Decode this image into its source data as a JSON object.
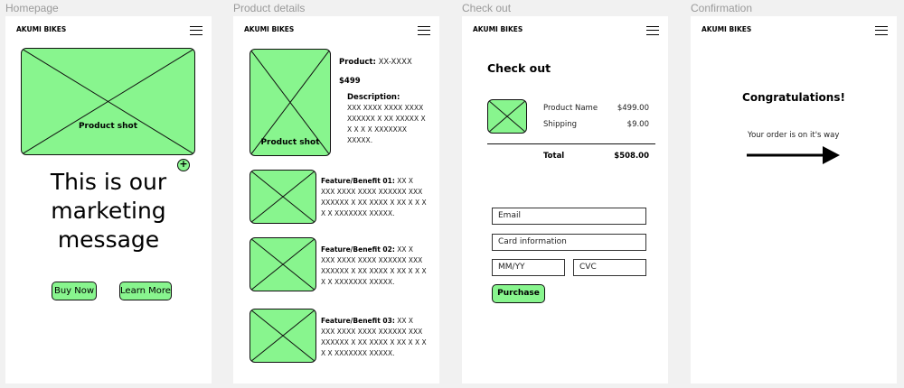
{
  "frames": [
    "Homepage",
    "Product details",
    "Check out",
    "Confirmation"
  ],
  "brand": "AKUMI BIKES",
  "colors": {
    "accent": "#88f58e",
    "background": "#f1f1f1"
  },
  "home": {
    "hero_caption": "Product shot",
    "message": "This is our marketing message",
    "buy": "Buy Now",
    "learn": "Learn More",
    "plus": "+"
  },
  "product": {
    "shot": "Product shot",
    "product_label": "Product:",
    "product_value": "XX-XXXX",
    "price": "$499",
    "desc_label": "Description:",
    "desc": "XXX XXXX XXXX XXXX XXXXXX X XX XXXXX X X X X X XXXXXXX XXXXX.",
    "features": [
      {
        "label": "Feature/Benefit 01:",
        "text": "XX X XXX XXXX XXXX XXXXXX XXX XXXXXX X XX XXXX X   XX X X X X X XXXXXXX XXXXX."
      },
      {
        "label": "Feature/Benefit 02:",
        "text": "XX X XXX XXXX XXXX XXXXXX XXX XXXXXX X XX XXXX X   XX X X X X X XXXXXXX XXXXX."
      },
      {
        "label": "Feature/Benefit 03:",
        "text": "XX X XXX XXXX XXXX XXXXXX XXX XXXXXX X XX XXXX X   XX X X X X X XXXXXXX XXXXX."
      }
    ]
  },
  "checkout": {
    "title": "Check out",
    "item": "Product Name",
    "item_price": "$499.00",
    "shipping": "Shipping",
    "shipping_price": "$9.00",
    "total": "Total",
    "total_price": "$508.00",
    "email": "Email",
    "card": "Card information",
    "date": "MM/YY",
    "cvc": "CVC",
    "purchase": "Purchase"
  },
  "confirm": {
    "title": "Congratulations!",
    "message": "Your order is on it's way"
  }
}
